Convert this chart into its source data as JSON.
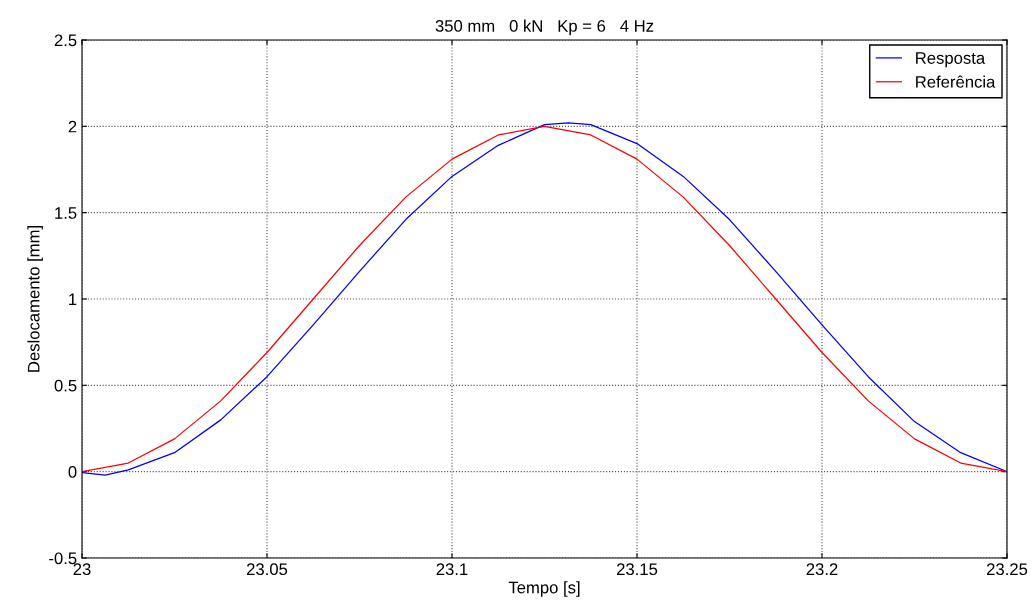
{
  "chart_data": {
    "type": "line",
    "title": "350 mm   0 kN   Kp = 6   4 Hz",
    "xlabel": "Tempo [s]",
    "ylabel": "Deslocamento [mm]",
    "xlim": [
      23,
      23.25
    ],
    "xticks": [
      23,
      23.05,
      23.1,
      23.15,
      23.2,
      23.25
    ],
    "ylim": [
      -0.5,
      2.5
    ],
    "yticks": [
      -0.5,
      0,
      0.5,
      1,
      1.5,
      2,
      2.5
    ],
    "grid": true,
    "legend": "top right",
    "marker": "none",
    "line_style": "solid",
    "series": [
      {
        "name": "Resposta",
        "color": "#0000ff",
        "x": [
          23,
          23.0063,
          23.0125,
          23.025,
          23.0375,
          23.05,
          23.0625,
          23.075,
          23.0875,
          23.1,
          23.1125,
          23.125,
          23.1315,
          23.1375,
          23.15,
          23.1625,
          23.175,
          23.1875,
          23.2,
          23.2125,
          23.225,
          23.2375,
          23.25
        ],
        "values": [
          -0.005,
          -0.02,
          0.01,
          0.11,
          0.3,
          0.55,
          0.85,
          1.16,
          1.46,
          1.71,
          1.89,
          2.01,
          2.02,
          2.01,
          1.9,
          1.71,
          1.46,
          1.16,
          0.85,
          0.55,
          0.29,
          0.11,
          0
        ]
      },
      {
        "name": "Referência",
        "color": "#ff0000",
        "x": [
          23,
          23.0125,
          23.025,
          23.0375,
          23.05,
          23.0625,
          23.075,
          23.0875,
          23.1,
          23.1125,
          23.125,
          23.1375,
          23.15,
          23.1625,
          23.175,
          23.1875,
          23.2,
          23.2125,
          23.225,
          23.2375,
          23.25
        ],
        "values": [
          0,
          0.05,
          0.19,
          0.41,
          0.69,
          1,
          1.31,
          1.59,
          1.81,
          1.95,
          2,
          1.95,
          1.81,
          1.59,
          1.31,
          1,
          0.69,
          0.41,
          0.19,
          0.05,
          0
        ]
      }
    ]
  }
}
